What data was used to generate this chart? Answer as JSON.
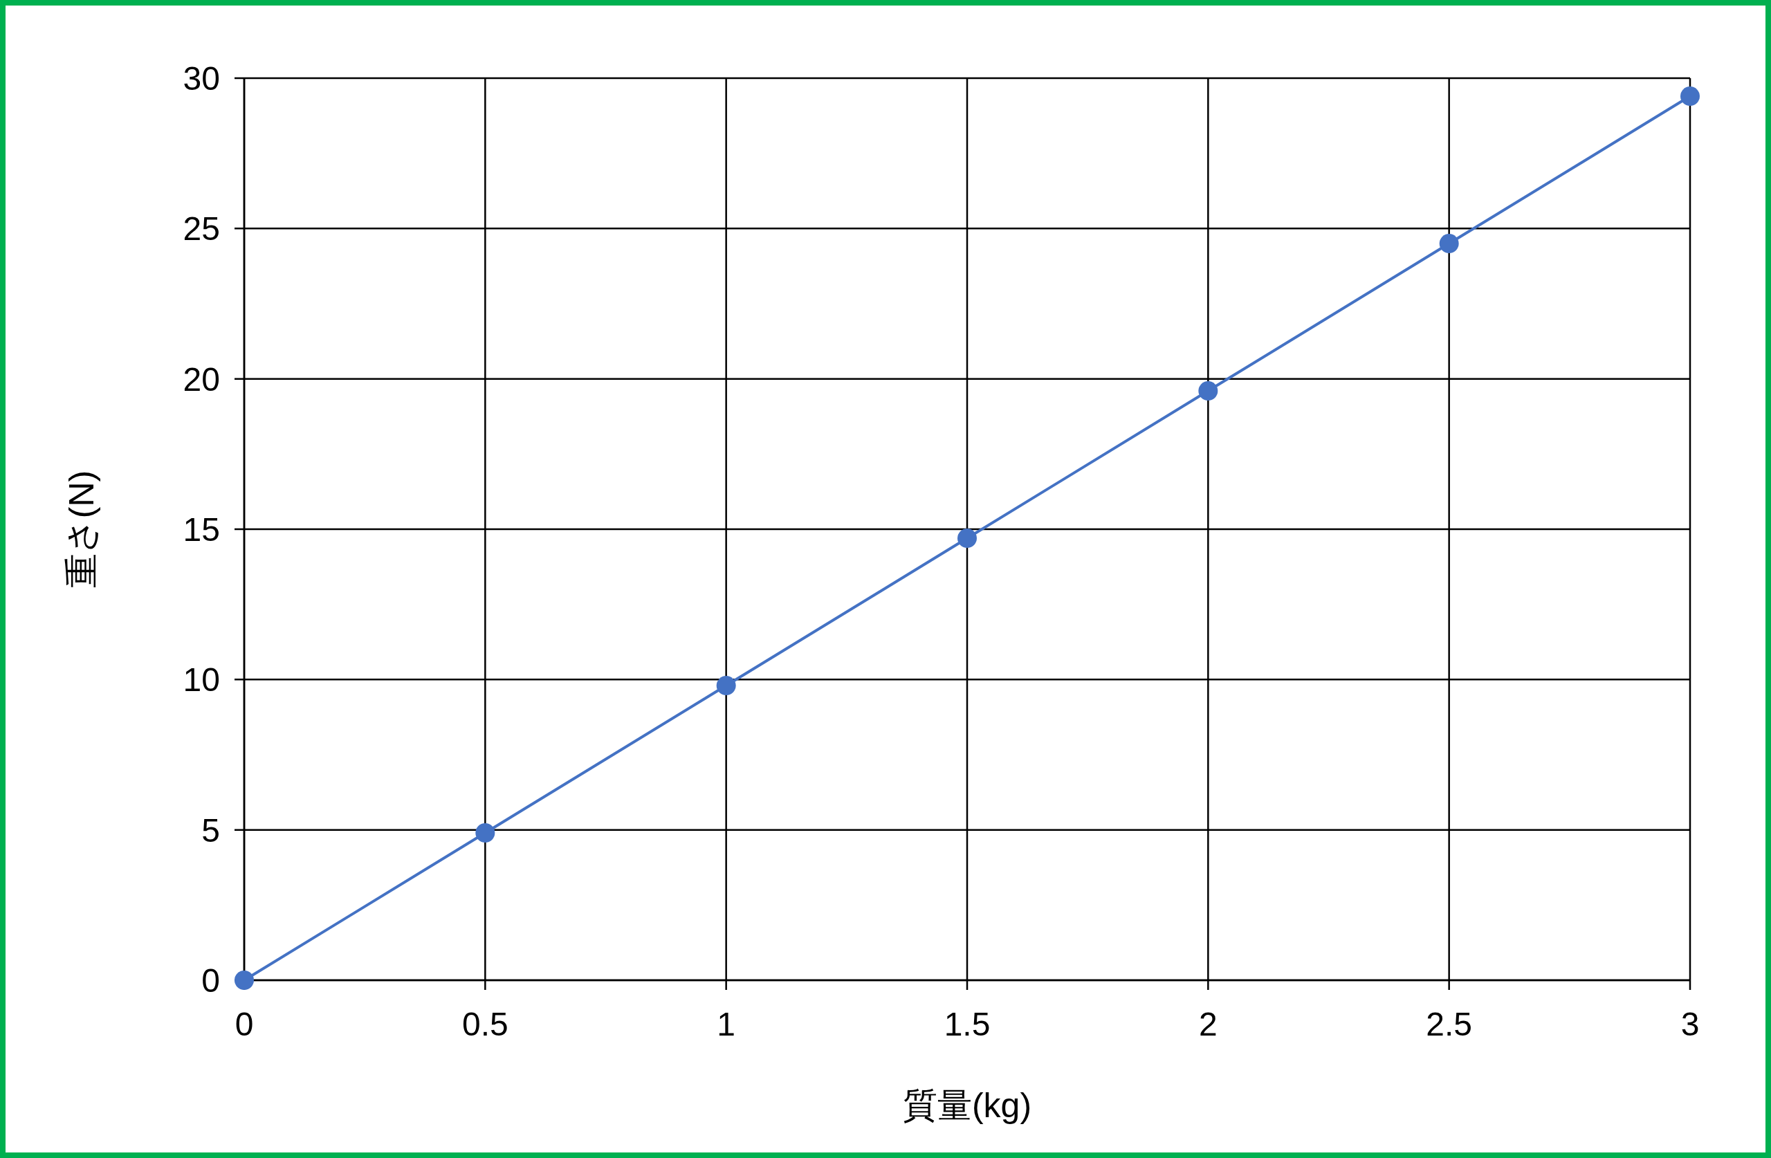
{
  "chart_data": {
    "type": "line",
    "xlabel": "質量(kg)",
    "ylabel": "重さ(N)",
    "x": [
      0,
      0.5,
      1,
      1.5,
      2,
      2.5,
      3
    ],
    "series": [
      {
        "color": "#4472c4",
        "values": [
          0,
          4.9,
          9.8,
          14.7,
          19.6,
          24.5,
          29.4
        ]
      }
    ],
    "xlim": [
      0,
      3
    ],
    "ylim": [
      0,
      30
    ],
    "xticks": [
      0,
      0.5,
      1,
      1.5,
      2,
      2.5,
      3
    ],
    "yticks": [
      0,
      5,
      10,
      15,
      20,
      25,
      30
    ],
    "grid": true,
    "marker": "circle",
    "line_style": "solid"
  }
}
